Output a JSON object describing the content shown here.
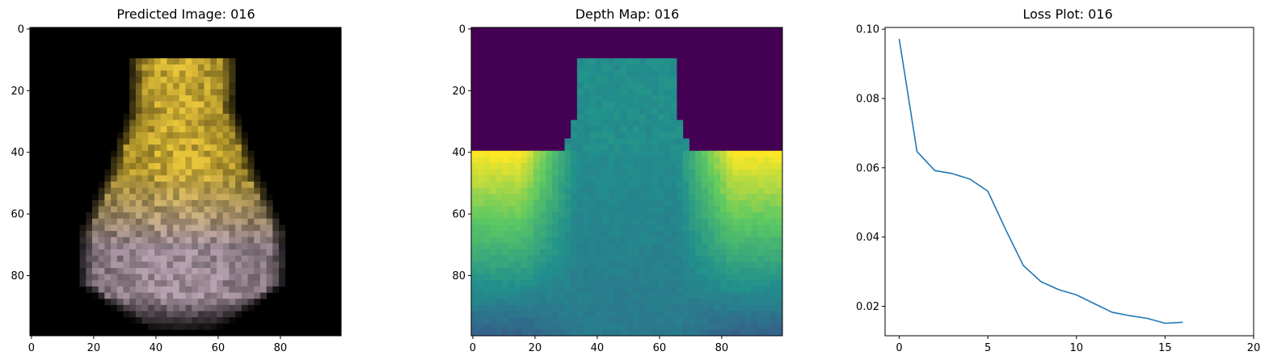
{
  "chart_data": [
    {
      "type": "image",
      "title": "Predicted Image: 016",
      "xticks": [
        "0",
        "20",
        "40",
        "60",
        "80"
      ],
      "yticks": [
        "0",
        "20",
        "40",
        "60",
        "80"
      ],
      "xlim": [
        0,
        99
      ],
      "ylim": [
        0,
        99
      ],
      "colors": {
        "background": "#000000",
        "upper": "#e8c43a",
        "lower": "#b8a2b0"
      }
    },
    {
      "type": "heatmap",
      "title": "Depth Map: 016",
      "xticks": [
        "0",
        "20",
        "40",
        "60",
        "80"
      ],
      "yticks": [
        "0",
        "20",
        "40",
        "60",
        "80"
      ],
      "xlim": [
        0,
        99
      ],
      "ylim": [
        0,
        99
      ],
      "colormap": "viridis",
      "colors": {
        "far": "#440154",
        "near": "#fde725",
        "mid": "#21918c"
      }
    },
    {
      "type": "line",
      "title": "Loss Plot: 016",
      "x": [
        0,
        1,
        2,
        3,
        4,
        5,
        6,
        7,
        8,
        9,
        10,
        11,
        12,
        13,
        14,
        15,
        16
      ],
      "series": [
        {
          "values": [
            0.0972,
            0.0647,
            0.0592,
            0.0583,
            0.0567,
            0.0532,
            0.0422,
            0.0318,
            0.0271,
            0.0248,
            0.0233,
            0.0208,
            0.0183,
            0.0173,
            0.0165,
            0.0151,
            0.0154
          ],
          "color": "#1f77b4"
        }
      ],
      "xticks": [
        "0",
        "5",
        "10",
        "15",
        "20"
      ],
      "yticks": [
        "0.02",
        "0.04",
        "0.06",
        "0.08",
        "0.10"
      ],
      "xlim": [
        -0.8,
        20
      ],
      "ylim": [
        0.0115,
        0.1005
      ]
    }
  ]
}
